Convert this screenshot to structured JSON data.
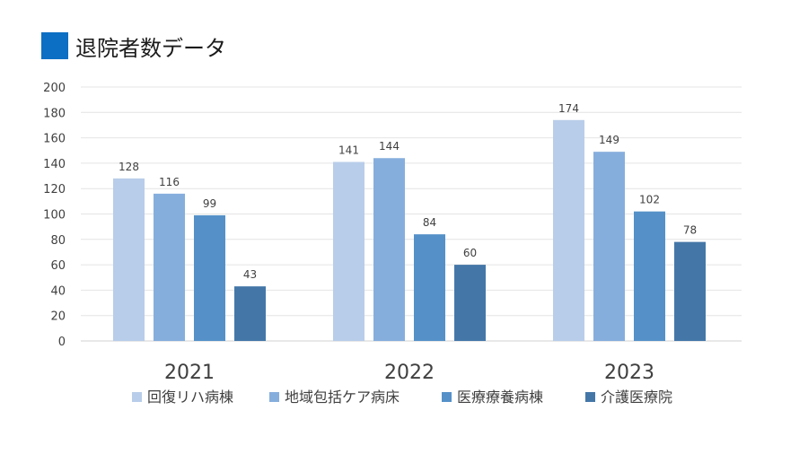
{
  "title": "退院者数データ",
  "colors": {
    "title_square": "#0c6fc4"
  },
  "chart_data": {
    "type": "bar",
    "categories": [
      "2021",
      "2022",
      "2023"
    ],
    "series": [
      {
        "name": "回復リハ病棟",
        "values": [
          128,
          141,
          174
        ],
        "color": "#b8cde9"
      },
      {
        "name": "地域包括ケア病床",
        "values": [
          116,
          144,
          149
        ],
        "color": "#86aedd"
      },
      {
        "name": "医療療養病棟",
        "values": [
          99,
          84,
          102
        ],
        "color": "#5591c8"
      },
      {
        "name": "介護医療院",
        "values": [
          43,
          60,
          78
        ],
        "color": "#4477a8"
      }
    ],
    "ylim": [
      0,
      200
    ],
    "yticks": [
      0,
      20,
      40,
      60,
      80,
      100,
      120,
      140,
      160,
      180,
      200
    ],
    "grid": true,
    "legend_position": "bottom",
    "data_labels": true
  }
}
